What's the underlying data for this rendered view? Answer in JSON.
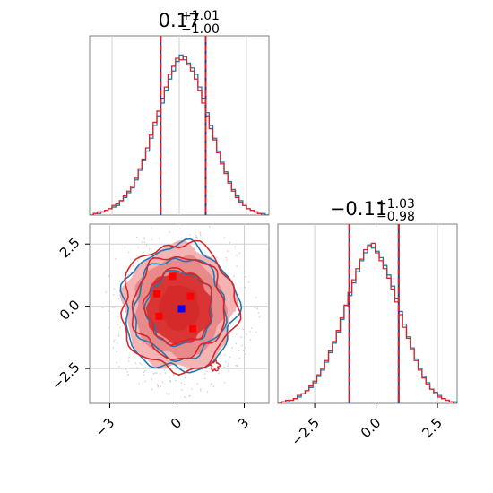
{
  "chart_data": [
    {
      "type": "histogram",
      "panel": "top-left",
      "title": {
        "main": "0.17",
        "sup": "+1.01",
        "sub": "−1.00"
      },
      "xlim": [
        -4,
        4
      ],
      "quantile_lines": [
        -0.83,
        1.18
      ],
      "grid": true,
      "series": [
        {
          "name": "",
          "color": "#1f77b4",
          "values": [
            0,
            1,
            1,
            2,
            3,
            4,
            5,
            6,
            9,
            11,
            14,
            17,
            22,
            28,
            34,
            40,
            48,
            56,
            62,
            70,
            78,
            85,
            90,
            96,
            100,
            97,
            95,
            92,
            88,
            80,
            73,
            64,
            56,
            48,
            40,
            33,
            27,
            21,
            16,
            12,
            9,
            6,
            4,
            3,
            2,
            1,
            1,
            0
          ]
        },
        {
          "name": "",
          "color": "#d62728",
          "values": [
            0,
            1,
            2,
            2,
            3,
            4,
            6,
            7,
            9,
            12,
            15,
            18,
            23,
            29,
            35,
            42,
            50,
            58,
            65,
            73,
            80,
            88,
            93,
            98,
            97,
            99,
            94,
            90,
            85,
            78,
            70,
            62,
            54,
            47,
            39,
            32,
            26,
            20,
            15,
            11,
            8,
            6,
            4,
            3,
            2,
            1,
            0,
            0
          ]
        }
      ]
    },
    {
      "type": "histogram",
      "panel": "bottom-right",
      "title": {
        "main": "−0.11",
        "sup": "+1.03",
        "sub": "−0.98"
      },
      "xlim": [
        -4,
        3.3
      ],
      "xticks": [
        "−2.5",
        "0.0",
        "2.5"
      ],
      "quantile_lines": [
        -1.09,
        0.92
      ],
      "grid": true,
      "series": [
        {
          "name": "",
          "color": "#1f77b4",
          "values": [
            0,
            1,
            1,
            2,
            3,
            4,
            6,
            8,
            10,
            13,
            17,
            21,
            26,
            32,
            38,
            45,
            53,
            61,
            68,
            76,
            83,
            90,
            95,
            100,
            98,
            96,
            92,
            87,
            81,
            74,
            66,
            58,
            50,
            42,
            35,
            28,
            22,
            17,
            13,
            9,
            7,
            5,
            3,
            2,
            1,
            1
          ]
        },
        {
          "name": "",
          "color": "#d62728",
          "values": [
            0,
            1,
            2,
            2,
            3,
            5,
            6,
            8,
            11,
            14,
            18,
            22,
            27,
            33,
            39,
            46,
            54,
            62,
            70,
            78,
            85,
            91,
            97,
            99,
            101,
            95,
            90,
            85,
            79,
            72,
            64,
            56,
            48,
            41,
            34,
            27,
            21,
            16,
            12,
            9,
            6,
            4,
            3,
            2,
            1,
            0
          ]
        }
      ]
    },
    {
      "type": "contour",
      "panel": "bottom-left",
      "xlim": [
        -3.9,
        4.1
      ],
      "ylim": [
        -3.9,
        3.3
      ],
      "xticks": [
        "−3",
        "0",
        "3"
      ],
      "yticks": [
        "2.5",
        "0.0",
        "−2.5"
      ],
      "grid": true,
      "contour_levels": [
        {
          "radius": 2.5,
          "fill": "#f4b4b4"
        },
        {
          "radius": 2.0,
          "fill": "#e98a8a"
        },
        {
          "radius": 1.45,
          "fill": "#db3434"
        },
        {
          "radius": 0.9,
          "fill": "#d42a2a"
        }
      ],
      "contour_colors": {
        "series_a": "#1f77b4",
        "series_b": "#d62728"
      },
      "markers_red": [
        [
          -0.9,
          0.5
        ],
        [
          -0.8,
          -0.4
        ],
        [
          -0.2,
          1.2
        ],
        [
          0.6,
          0.4
        ],
        [
          0.7,
          -0.9
        ]
      ],
      "marker_blue": [
        0.2,
        -0.1
      ]
    }
  ]
}
